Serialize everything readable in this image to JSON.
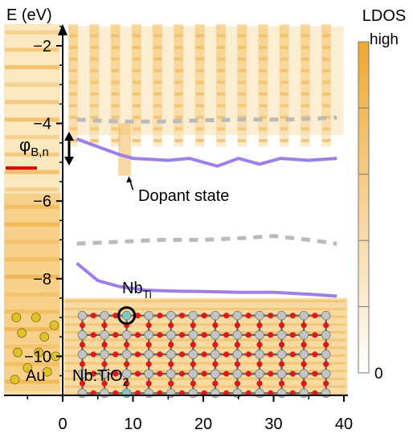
{
  "chart_data": {
    "type": "heatmap",
    "title": "",
    "ylabel": "E (eV)",
    "xlabel": "",
    "xlim": [
      -8,
      42
    ],
    "ylim": [
      -11.5,
      -1.2
    ],
    "x_ticks": [
      0,
      10,
      20,
      30,
      40
    ],
    "y_ticks": [
      -2,
      -4,
      -6,
      -8,
      -10
    ],
    "colorbar": {
      "label": "LDOS",
      "max_label": "high",
      "min_label": "0",
      "color_high": "#f0a830",
      "color_low": "#ffffff"
    },
    "series": [
      {
        "style": "solid",
        "color": "#a07ee8",
        "x": [
          2,
          5,
          8,
          10,
          12,
          15,
          18,
          22,
          25,
          28,
          31,
          35,
          39
        ],
        "y": [
          -4.4,
          -4.6,
          -4.8,
          -4.9,
          -4.92,
          -4.95,
          -4.9,
          -5.1,
          -4.9,
          -5.05,
          -4.9,
          -4.95,
          -4.9
        ]
      },
      {
        "style": "dashed",
        "color": "#bbbbbb",
        "x": [
          2,
          8,
          14,
          20,
          26,
          32,
          39
        ],
        "y": [
          -3.9,
          -3.95,
          -3.95,
          -3.92,
          -3.9,
          -3.9,
          -3.85
        ]
      },
      {
        "style": "solid",
        "color": "#a07ee8",
        "x": [
          2,
          5,
          8,
          12,
          16,
          20,
          25,
          30,
          35,
          39
        ],
        "y": [
          -7.6,
          -8.05,
          -8.2,
          -8.3,
          -8.32,
          -8.33,
          -8.35,
          -8.35,
          -8.4,
          -8.45
        ]
      },
      {
        "style": "dashed",
        "color": "#bbbbbb",
        "x": [
          2,
          8,
          14,
          20,
          26,
          30,
          35,
          39
        ],
        "y": [
          -7.1,
          -7.05,
          -7.0,
          -7.0,
          -6.95,
          -6.9,
          -7.0,
          -7.1
        ]
      }
    ],
    "annotations": {
      "phi_symbol": "φ",
      "phi_subscript": "B,n",
      "phi_level": -5.15,
      "phi_color": "#dd0000",
      "dopant_label": "Dopant state",
      "dopant_x": 9.3,
      "dopant_y": -5.4,
      "nb_label": "Nb",
      "nb_subscript": "Ti",
      "au_label": "Au",
      "slab_label": "Nb:TiO",
      "slab_subscript": "2"
    }
  }
}
